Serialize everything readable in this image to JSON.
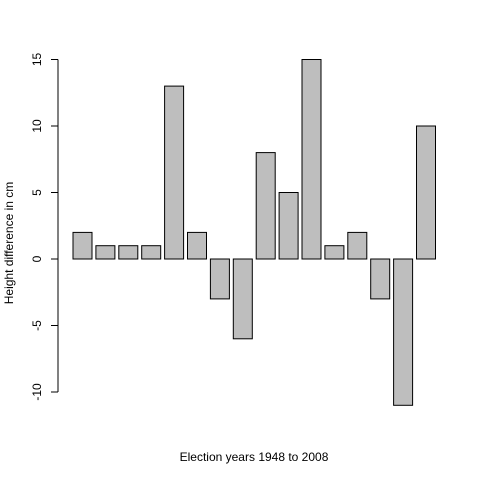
{
  "chart_data": {
    "type": "bar",
    "title": "",
    "xlabel": "Election years 1948 to 2008",
    "ylabel": "Height difference in cm",
    "ylim": [
      -11,
      15
    ],
    "yticks": [
      -10,
      -5,
      0,
      5,
      10,
      15
    ],
    "values": [
      2,
      1,
      1,
      1,
      13,
      2,
      -3,
      -6,
      8,
      5,
      15,
      1,
      2,
      -3,
      -11,
      10
    ],
    "grid": false,
    "legend": "none",
    "bar_color": "#bebebe",
    "border_color": "#000000"
  }
}
